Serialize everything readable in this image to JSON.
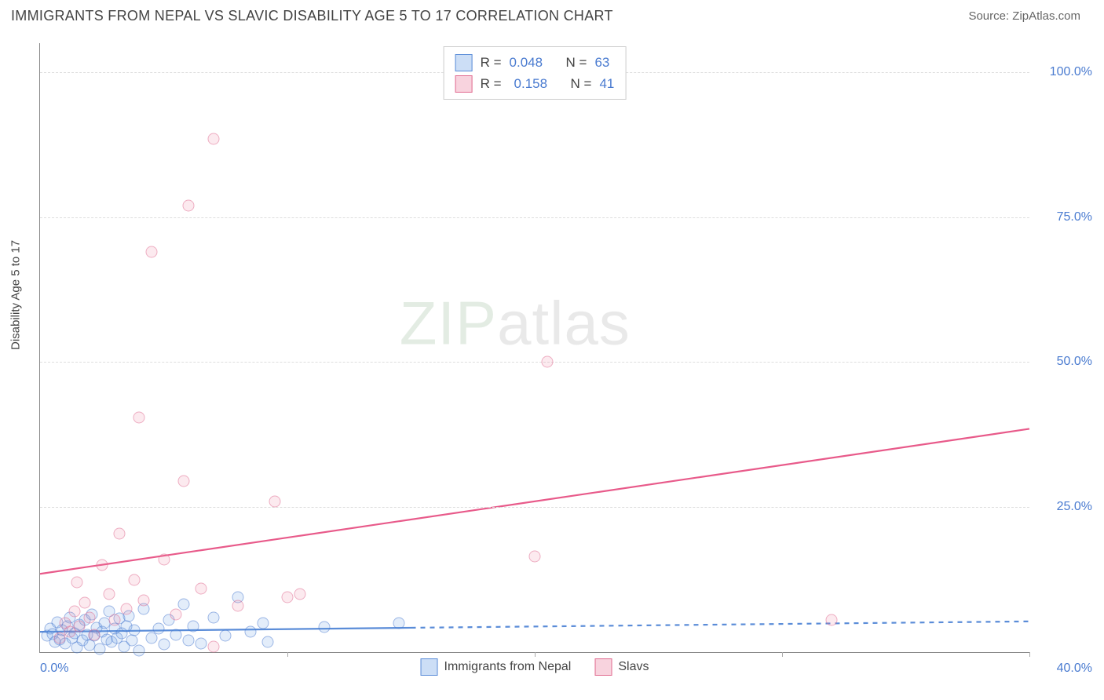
{
  "header": {
    "title": "IMMIGRANTS FROM NEPAL VS SLAVIC DISABILITY AGE 5 TO 17 CORRELATION CHART",
    "source": "Source: ZipAtlas.com"
  },
  "chart": {
    "type": "scatter",
    "ylabel": "Disability Age 5 to 17",
    "xlim": [
      0,
      40
    ],
    "ylim": [
      0,
      105
    ],
    "yticks": [
      25,
      50,
      75,
      100
    ],
    "ytick_labels": [
      "25.0%",
      "50.0%",
      "75.0%",
      "100.0%"
    ],
    "xtick_labels": {
      "min": "0.0%",
      "max": "40.0%"
    },
    "vtick_positions_x": [
      10,
      20,
      30,
      40
    ],
    "background_color": "#ffffff",
    "grid_color": "#dddddd",
    "marker_size": 15,
    "watermark": {
      "part1": "ZIP",
      "part2": "atlas"
    },
    "series": [
      {
        "name": "Immigrants from Nepal",
        "color": "#5a8cd8",
        "fill": "rgba(110,160,230,0.35)",
        "R": "0.048",
        "N": "63",
        "regression": {
          "x1": 0,
          "y1": 3.5,
          "x2_solid": 15,
          "y2_solid": 4.2,
          "x2_dash": 40,
          "y2_dash": 5.3
        },
        "points": [
          [
            0.3,
            2.8
          ],
          [
            0.4,
            4.0
          ],
          [
            0.5,
            3.1
          ],
          [
            0.6,
            1.8
          ],
          [
            0.7,
            5.2
          ],
          [
            0.8,
            2.2
          ],
          [
            0.9,
            3.8
          ],
          [
            1.0,
            1.5
          ],
          [
            1.1,
            4.5
          ],
          [
            1.2,
            6.0
          ],
          [
            1.3,
            2.5
          ],
          [
            1.4,
            3.2
          ],
          [
            1.5,
            0.8
          ],
          [
            1.6,
            4.8
          ],
          [
            1.7,
            2.0
          ],
          [
            1.8,
            5.5
          ],
          [
            1.9,
            3.0
          ],
          [
            2.0,
            1.2
          ],
          [
            2.1,
            6.5
          ],
          [
            2.2,
            2.8
          ],
          [
            2.3,
            4.2
          ],
          [
            2.4,
            0.5
          ],
          [
            2.5,
            3.5
          ],
          [
            2.6,
            5.0
          ],
          [
            2.7,
            2.2
          ],
          [
            2.8,
            7.0
          ],
          [
            2.9,
            1.8
          ],
          [
            3.0,
            4.0
          ],
          [
            3.1,
            2.5
          ],
          [
            3.2,
            5.8
          ],
          [
            3.3,
            3.2
          ],
          [
            3.4,
            1.0
          ],
          [
            3.5,
            4.5
          ],
          [
            3.6,
            6.2
          ],
          [
            3.7,
            2.0
          ],
          [
            3.8,
            3.8
          ],
          [
            4.0,
            0.3
          ],
          [
            4.2,
            7.5
          ],
          [
            4.5,
            2.5
          ],
          [
            4.8,
            4.0
          ],
          [
            5.0,
            1.3
          ],
          [
            5.2,
            5.5
          ],
          [
            5.5,
            3.0
          ],
          [
            5.8,
            8.2
          ],
          [
            6.0,
            2.0
          ],
          [
            6.2,
            4.5
          ],
          [
            6.5,
            1.5
          ],
          [
            7.0,
            6.0
          ],
          [
            7.5,
            2.8
          ],
          [
            8.0,
            9.5
          ],
          [
            8.5,
            3.5
          ],
          [
            9.0,
            5.0
          ],
          [
            9.2,
            1.8
          ],
          [
            11.5,
            4.3
          ],
          [
            14.5,
            5.0
          ]
        ]
      },
      {
        "name": "Slavs",
        "color": "#e85a8a",
        "fill": "rgba(235,130,160,0.3)",
        "R": "0.158",
        "N": "41",
        "regression": {
          "x1": 0,
          "y1": 13.5,
          "x2_solid": 40,
          "y2_solid": 38.5
        },
        "points": [
          [
            0.8,
            2.5
          ],
          [
            1.0,
            5.0
          ],
          [
            1.2,
            3.5
          ],
          [
            1.4,
            7.0
          ],
          [
            1.5,
            12.0
          ],
          [
            1.6,
            4.5
          ],
          [
            1.8,
            8.5
          ],
          [
            2.0,
            6.0
          ],
          [
            2.2,
            3.0
          ],
          [
            2.5,
            15.0
          ],
          [
            2.8,
            10.0
          ],
          [
            3.0,
            5.5
          ],
          [
            3.2,
            20.5
          ],
          [
            3.5,
            7.5
          ],
          [
            3.8,
            12.5
          ],
          [
            4.0,
            40.5
          ],
          [
            4.2,
            9.0
          ],
          [
            4.5,
            69.0
          ],
          [
            5.0,
            16.0
          ],
          [
            5.5,
            6.5
          ],
          [
            5.8,
            29.5
          ],
          [
            6.0,
            77.0
          ],
          [
            6.5,
            11.0
          ],
          [
            7.0,
            88.5
          ],
          [
            7.0,
            1.0
          ],
          [
            8.0,
            8.0
          ],
          [
            9.5,
            26.0
          ],
          [
            10.0,
            9.5
          ],
          [
            10.5,
            10.0
          ],
          [
            20.0,
            16.5
          ],
          [
            20.5,
            50.0
          ],
          [
            32.0,
            5.5
          ]
        ]
      }
    ],
    "top_legend": {
      "r_label": "R =",
      "n_label": "N ="
    },
    "bottom_legend": [
      {
        "swatch": "blue",
        "label": "Immigrants from Nepal"
      },
      {
        "swatch": "pink",
        "label": "Slavs"
      }
    ]
  }
}
